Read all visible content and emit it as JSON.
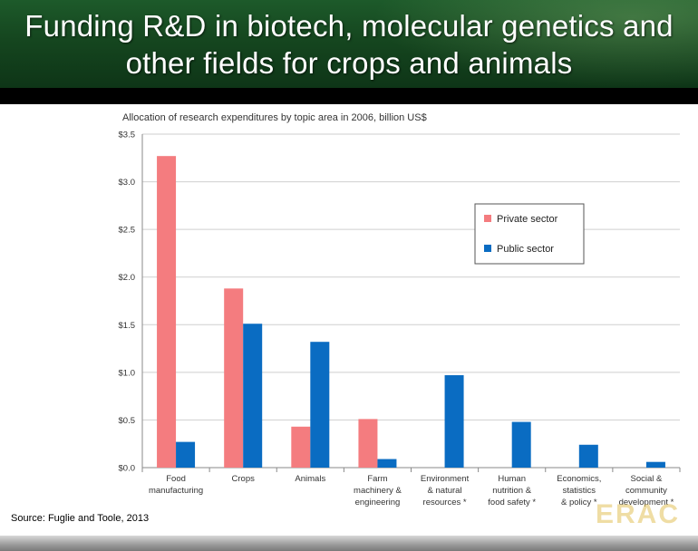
{
  "slide": {
    "title_line1": "Funding R&D in biotech, molecular genetics and",
    "title_line2": "other fields for crops and animals",
    "source": "Source:  Fuglie and Toole, 2013",
    "watermark": "ERAC",
    "header_color": "#15461f"
  },
  "chart_data": {
    "type": "bar",
    "title": "Allocation of research expenditures by topic area in 2006, billion US$",
    "xlabel": "",
    "ylabel": "",
    "ylim": [
      0,
      3.5
    ],
    "yticks": [
      {
        "value": 0.0,
        "label": "$0.0"
      },
      {
        "value": 0.5,
        "label": "$0.5"
      },
      {
        "value": 1.0,
        "label": "$1.0"
      },
      {
        "value": 1.5,
        "label": "$1.5"
      },
      {
        "value": 2.0,
        "label": "$2.0"
      },
      {
        "value": 2.5,
        "label": "$2.5"
      },
      {
        "value": 3.0,
        "label": "$3.0"
      },
      {
        "value": 3.5,
        "label": "$3.5"
      }
    ],
    "grid": true,
    "legend_position": "right",
    "categories": [
      [
        "Food",
        "manufacturing"
      ],
      [
        "Crops"
      ],
      [
        "Animals"
      ],
      [
        "Farm",
        "machinery &",
        "engineering"
      ],
      [
        "Environment",
        "& natural",
        "resources *"
      ],
      [
        "Human",
        "nutrition &",
        "food safety *"
      ],
      [
        "Economics,",
        "statistics",
        "& policy *"
      ],
      [
        "Social &",
        "community",
        "development *"
      ]
    ],
    "series": [
      {
        "name": "Private sector",
        "color": "#f47c7f",
        "values": [
          3.27,
          1.88,
          0.43,
          0.51,
          0,
          0,
          0,
          0
        ]
      },
      {
        "name": "Public sector",
        "color": "#0a6cc2",
        "values": [
          0.27,
          1.51,
          1.32,
          0.09,
          0.97,
          0.48,
          0.24,
          0.06
        ]
      }
    ]
  }
}
